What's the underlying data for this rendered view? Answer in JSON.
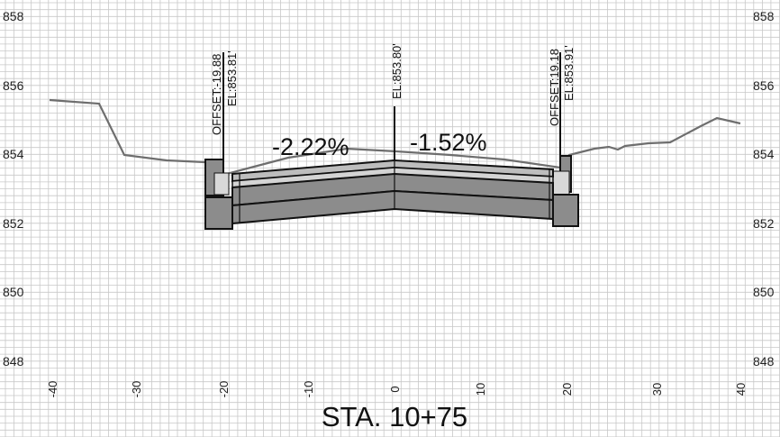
{
  "title": "STA. 10+75",
  "elevation_labels": [
    "858",
    "856",
    "854",
    "852",
    "850",
    "848"
  ],
  "station_labels": [
    "-40",
    "-30",
    "-20",
    "-10",
    "0",
    "10",
    "20",
    "30",
    "40"
  ],
  "callouts": {
    "left_offset": "OFFSET:-19.88",
    "left_elevation": "EL:853.81'",
    "center_elevation": "EL:853.80'",
    "right_offset": "OFFSET:19.18",
    "right_elevation": "EL:853.91'"
  },
  "grades": {
    "left": "-2.22%",
    "right": "-1.52%"
  },
  "colors": {
    "grid": "#c8c8c8",
    "ground_line": "#6e6e6e",
    "pavement_dark": "#8c8c8c",
    "pavement_light": "#bdbdbd",
    "outline": "#111111"
  }
}
